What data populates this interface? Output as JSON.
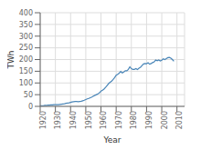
{
  "chart_data": {
    "type": "line",
    "xlabel": "Year",
    "ylabel": "TWh",
    "color": "#4a86b8",
    "grid": true,
    "xlim": [
      1920,
      2015
    ],
    "ylim": [
      0,
      400
    ],
    "xticks": [
      1920,
      1930,
      1940,
      1950,
      1960,
      1970,
      1980,
      1990,
      2000,
      2010
    ],
    "yticks": [
      0,
      50,
      100,
      150,
      200,
      250,
      300,
      350,
      400
    ],
    "x": [
      1920,
      1921,
      1922,
      1923,
      1924,
      1925,
      1926,
      1927,
      1928,
      1929,
      1930,
      1931,
      1932,
      1933,
      1934,
      1935,
      1936,
      1937,
      1938,
      1939,
      1940,
      1941,
      1942,
      1943,
      1944,
      1945,
      1946,
      1947,
      1948,
      1949,
      1950,
      1951,
      1952,
      1953,
      1954,
      1955,
      1956,
      1957,
      1958,
      1959,
      1960,
      1961,
      1962,
      1963,
      1964,
      1965,
      1966,
      1967,
      1968,
      1969,
      1970,
      1971,
      1972,
      1973,
      1974,
      1975,
      1976,
      1977,
      1978,
      1979,
      1980,
      1981,
      1982,
      1983,
      1984,
      1985,
      1986,
      1987,
      1988,
      1989,
      1990,
      1991,
      1992,
      1993,
      1994,
      1995,
      1996,
      1997,
      1998,
      1999,
      2000,
      2001,
      2002,
      2003,
      2004,
      2005,
      2006,
      2007,
      2008
    ],
    "values": [
      3,
      3,
      3,
      4,
      4,
      5,
      5,
      6,
      6,
      7,
      7,
      7,
      7,
      8,
      9,
      10,
      11,
      13,
      14,
      15,
      17,
      19,
      20,
      21,
      21,
      20,
      21,
      22,
      24,
      26,
      29,
      32,
      34,
      37,
      40,
      44,
      47,
      50,
      53,
      58,
      65,
      69,
      74,
      81,
      89,
      97,
      103,
      108,
      115,
      123,
      133,
      137,
      142,
      149,
      143,
      147,
      152,
      152,
      158,
      169,
      161,
      158,
      158,
      161,
      157,
      163,
      167,
      174,
      181,
      183,
      182,
      186,
      180,
      183,
      187,
      190,
      198,
      195,
      198,
      194,
      197,
      203,
      200,
      204,
      208,
      209,
      206,
      200,
      193
    ]
  }
}
